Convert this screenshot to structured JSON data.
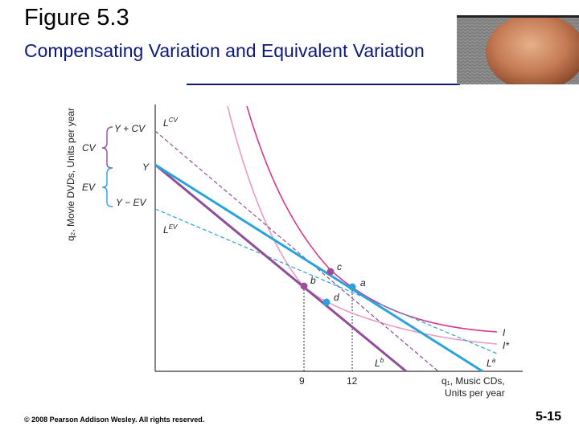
{
  "slide": {
    "title": "Figure 5.3",
    "subtitle": "Compensating Variation and Equivalent Variation",
    "copyright": "© 2008 Pearson Addison Wesley. All rights reserved.",
    "number": "5-15"
  },
  "diagram": {
    "y_axis_label": "q₂, Movie DVDs, Units per year",
    "x_axis_label_line1": "q₁, Music CDs,",
    "x_axis_label_line2": "Units per year",
    "y_ticks": {
      "y_plus_cv": "Y + CV",
      "y": "Y",
      "y_minus_ev": "Y − EV"
    },
    "bracket_labels": {
      "cv": "CV",
      "ev": "EV"
    },
    "x_ticks": [
      "9",
      "12"
    ],
    "lines": {
      "lcv": "L",
      "lcv_sup": "CV",
      "lev": "L",
      "lev_sup": "EV",
      "lb": "L",
      "lb_sup": "b",
      "la": "L",
      "la_sup": "a"
    },
    "points": {
      "a": "a",
      "b": "b",
      "c": "c",
      "d": "d"
    },
    "curves": {
      "i": "I",
      "i_star": "I*"
    },
    "colors": {
      "blue_line": "#2aa3dc",
      "purple_line": "#8e4f97",
      "dashed_purple": "#8e4f97",
      "dashed_blue": "#2aa3dc",
      "indiff_magenta": "#d63a8c",
      "indiff_pink": "#e99cc4",
      "point_purple": "#9c4e9c",
      "point_blue": "#2aa3dc",
      "bracket": "#8e4f97"
    }
  }
}
